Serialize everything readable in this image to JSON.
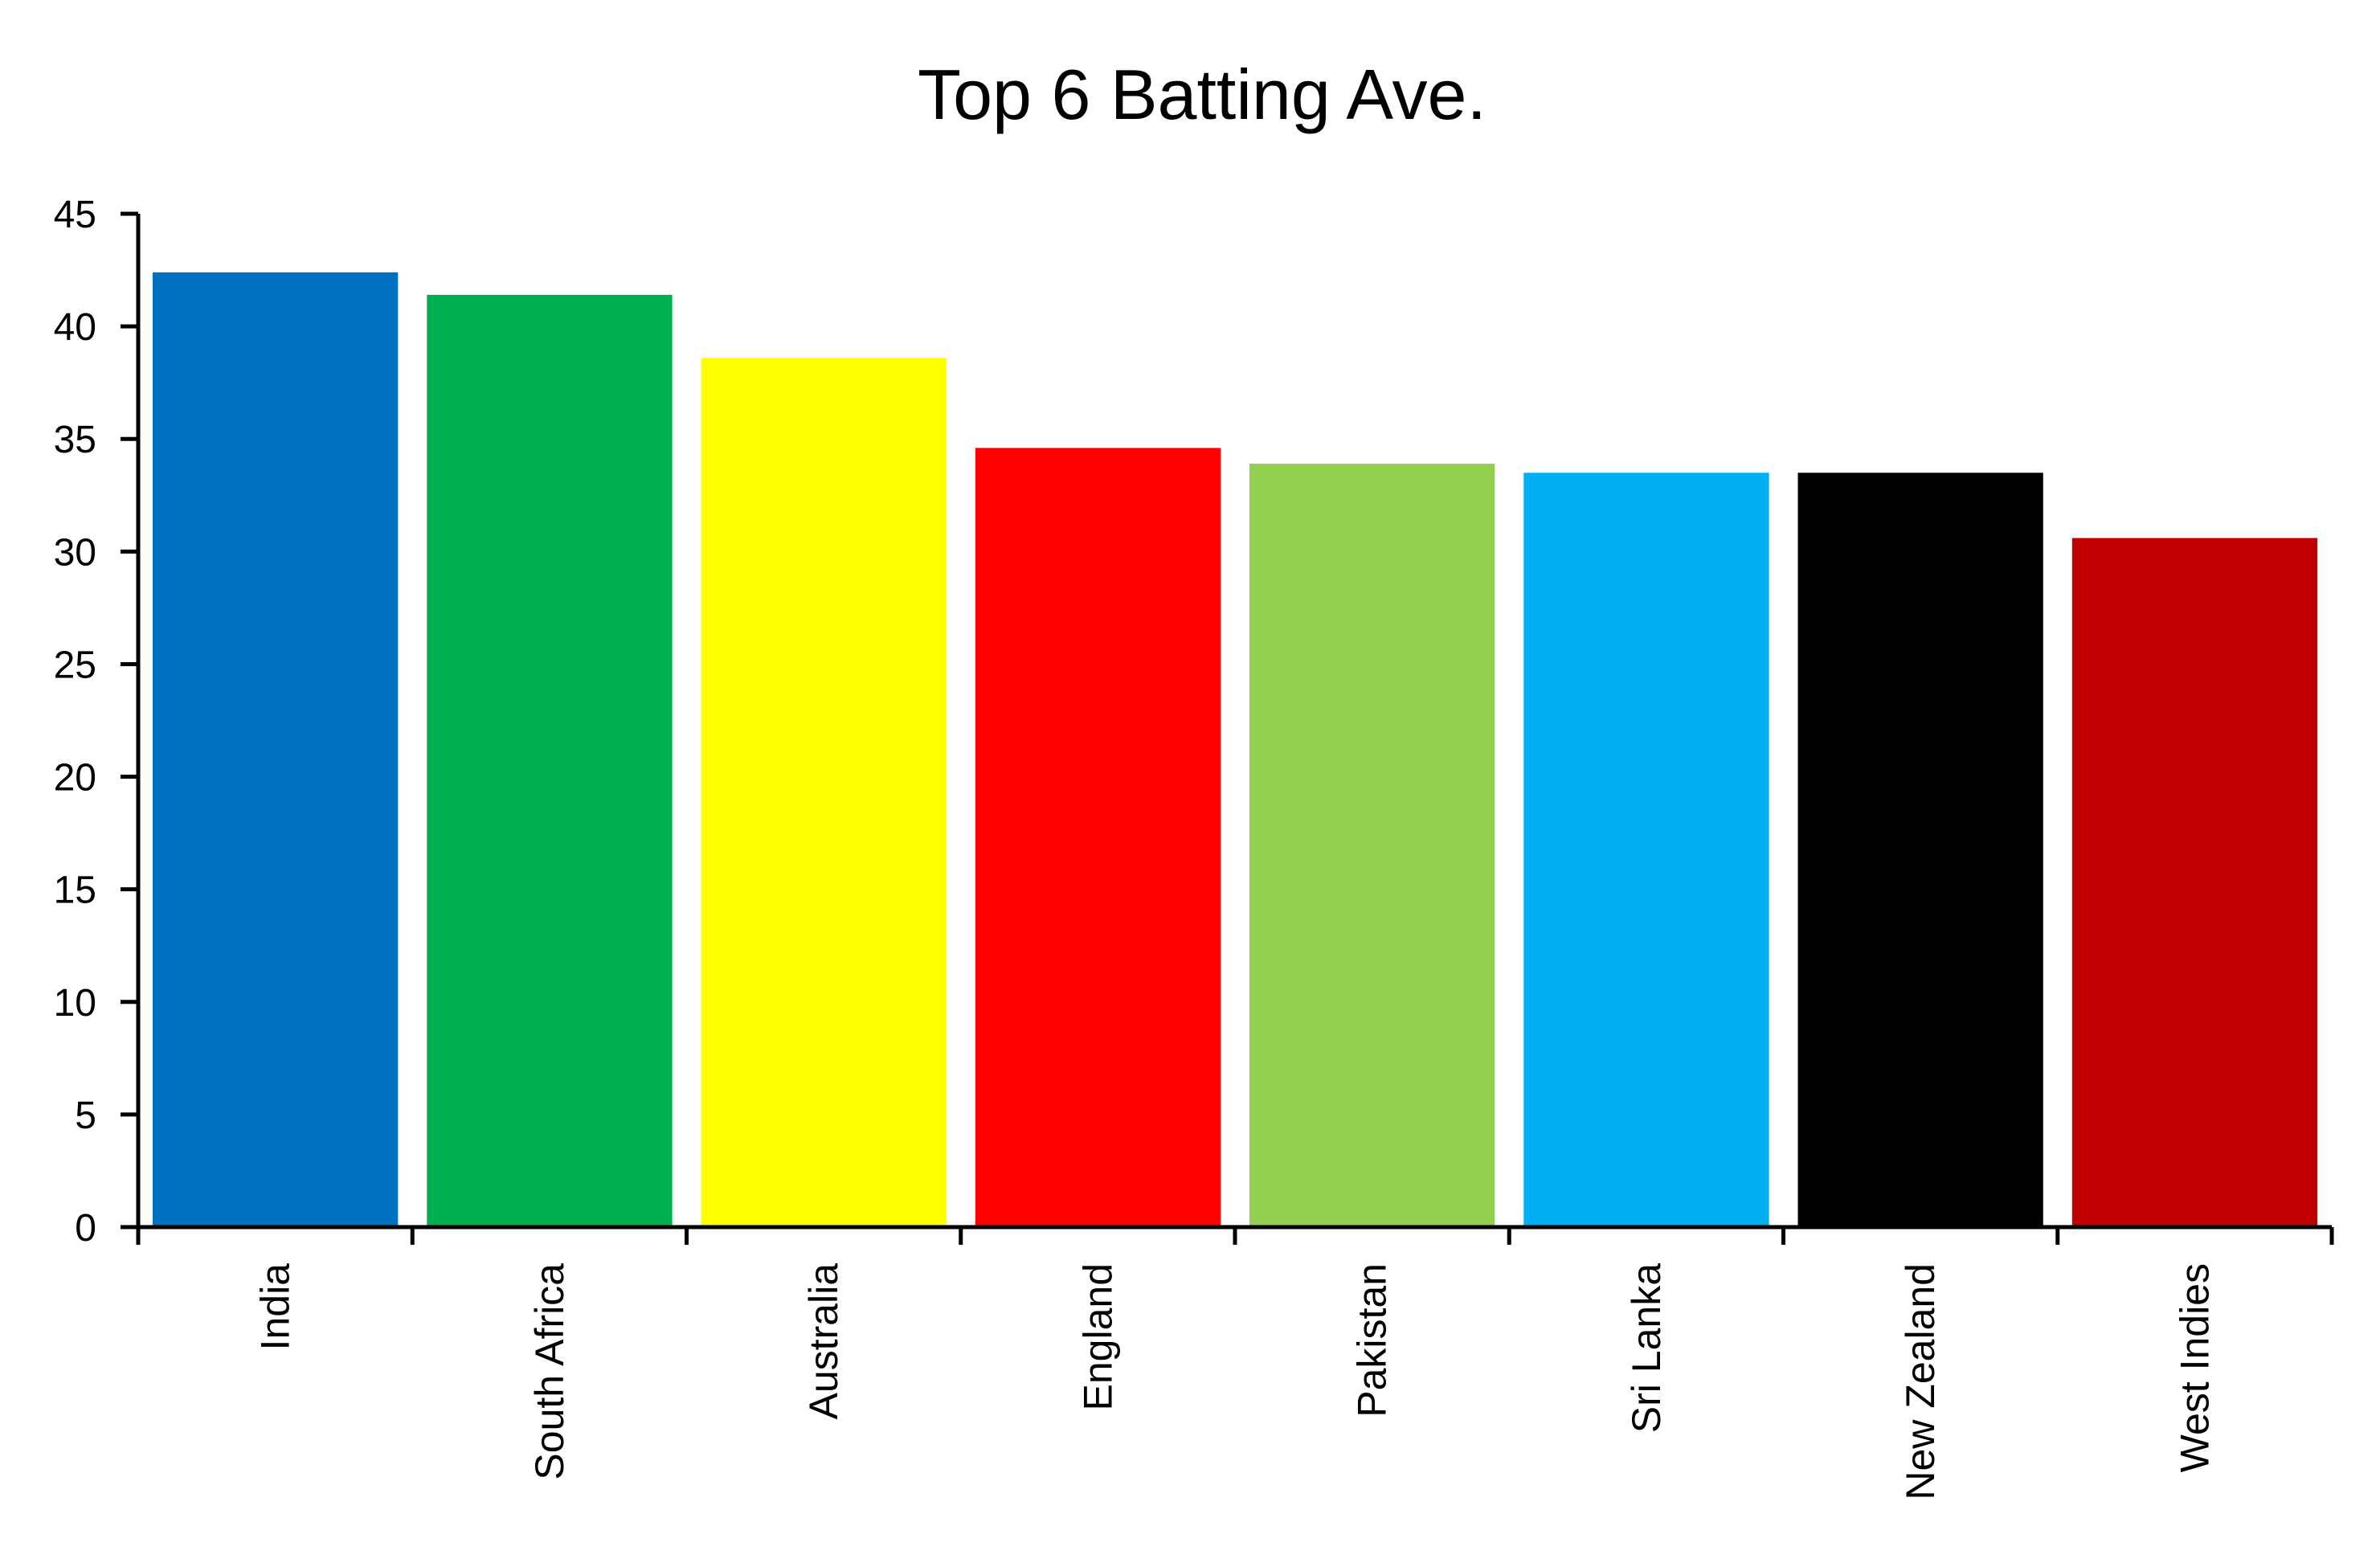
{
  "chart_data": {
    "type": "bar",
    "title": "Top 6 Batting Ave.",
    "xlabel": "",
    "ylabel": "",
    "categories": [
      "India",
      "South Africa",
      "Australia",
      "England",
      "Pakistan",
      "Sri Lanka",
      "New Zealand",
      "West Indies"
    ],
    "values": [
      42.4,
      41.4,
      38.6,
      34.6,
      33.9,
      33.5,
      33.5,
      30.6
    ],
    "colors": [
      "#0070C0",
      "#00B050",
      "#FFFF00",
      "#FF0000",
      "#92D050",
      "#00B0F0",
      "#000000",
      "#C00000"
    ],
    "ylim": [
      0,
      45
    ],
    "yticks": [
      0,
      5,
      10,
      15,
      20,
      25,
      30,
      35,
      40,
      45
    ],
    "grid": false,
    "legend": "none"
  }
}
